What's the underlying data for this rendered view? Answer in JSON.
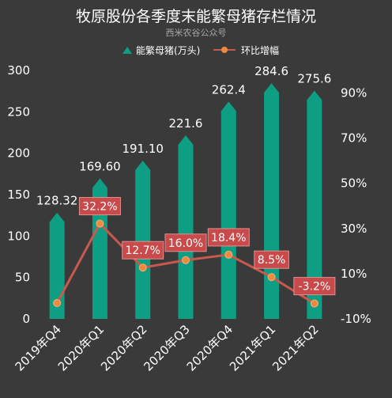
{
  "chart_data": {
    "type": "bar",
    "title": "牧原股份各季度末能繁母猪存栏情况",
    "subtitle": "西米农谷公众号",
    "categories": [
      "2019年Q4",
      "2020年Q1",
      "2020年Q2",
      "2020年Q3",
      "2020年Q4",
      "2021年Q1",
      "2021年Q2"
    ],
    "series": [
      {
        "name": "能繁母猪(万头)",
        "type": "bar",
        "axis": "left",
        "values": [
          128.32,
          169.6,
          191.1,
          221.6,
          262.4,
          284.6,
          275.6
        ],
        "labels": [
          "128.32",
          "169.60",
          "191.10",
          "221.6",
          "262.4",
          "284.6",
          "275.6"
        ],
        "color": "#0e9e84"
      },
      {
        "name": "环比增幅",
        "type": "line",
        "axis": "right",
        "values": [
          -3.0,
          32.2,
          12.7,
          16.0,
          18.4,
          8.5,
          -3.2
        ],
        "labels": [
          "",
          "32.2%",
          "12.7%",
          "16.0%",
          "18.4%",
          "8.5%",
          "-3.2%"
        ],
        "color": "#c8594e",
        "marker_color": "#ee8a40",
        "label_bg": "#c84a4a"
      }
    ],
    "y_left": {
      "ylim": [
        0,
        300
      ],
      "ticks": [
        "0",
        "50",
        "100",
        "150",
        "200",
        "250",
        "300"
      ]
    },
    "y_right": {
      "ylim": [
        -10,
        100
      ],
      "ticks": [
        "-10%",
        "10%",
        "30%",
        "50%",
        "70%",
        "90%"
      ],
      "tick_values": [
        -10,
        10,
        30,
        50,
        70,
        90
      ]
    },
    "legend_position": "top-center",
    "grid": false
  }
}
